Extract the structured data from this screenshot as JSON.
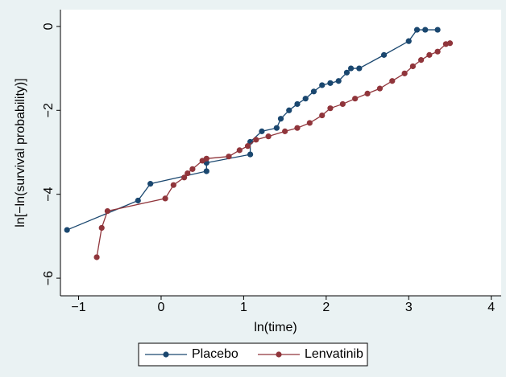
{
  "chart_data": {
    "type": "line",
    "xlabel": "ln(time)",
    "ylabel": "ln[−ln(survival probability)]",
    "xlim": [
      -1.22,
      4.12
    ],
    "ylim": [
      -6.42,
      0.4
    ],
    "xticks": [
      {
        "value": -1,
        "label": "−1"
      },
      0,
      1,
      2,
      3,
      4
    ],
    "yticks": [
      {
        "value": -6,
        "label": "−6"
      },
      {
        "value": -4,
        "label": "−4"
      },
      {
        "value": -2,
        "label": "−2"
      },
      0
    ],
    "grid": false,
    "legend": "bottom",
    "series": [
      {
        "name": "Placebo",
        "color": "#1a476f",
        "x": [
          -1.14,
          -0.28,
          -0.13,
          0.55,
          0.55,
          1.08,
          1.08,
          1.22,
          1.4,
          1.45,
          1.55,
          1.65,
          1.75,
          1.85,
          1.95,
          2.05,
          2.15,
          2.25,
          2.3,
          2.4,
          2.7,
          3.0,
          3.1,
          3.2,
          3.35
        ],
        "values": [
          -4.85,
          -4.15,
          -3.75,
          -3.45,
          -3.25,
          -3.05,
          -2.75,
          -2.5,
          -2.42,
          -2.2,
          -2.0,
          -1.85,
          -1.72,
          -1.55,
          -1.4,
          -1.35,
          -1.3,
          -1.1,
          -1.0,
          -1.0,
          -0.68,
          -0.35,
          -0.08,
          -0.08,
          -0.08
        ]
      },
      {
        "name": "Lenvatinib",
        "color": "#90353b",
        "x": [
          -0.78,
          -0.72,
          -0.65,
          0.05,
          0.15,
          0.28,
          0.32,
          0.38,
          0.5,
          0.55,
          0.82,
          0.95,
          1.05,
          1.15,
          1.3,
          1.5,
          1.65,
          1.8,
          1.95,
          2.05,
          2.2,
          2.35,
          2.5,
          2.65,
          2.8,
          2.95,
          3.05,
          3.15,
          3.25,
          3.35,
          3.45,
          3.5
        ],
        "values": [
          -5.5,
          -4.8,
          -4.4,
          -4.1,
          -3.78,
          -3.6,
          -3.5,
          -3.4,
          -3.2,
          -3.15,
          -3.1,
          -2.95,
          -2.85,
          -2.7,
          -2.62,
          -2.5,
          -2.42,
          -2.3,
          -2.12,
          -1.95,
          -1.85,
          -1.72,
          -1.6,
          -1.48,
          -1.3,
          -1.12,
          -0.95,
          -0.8,
          -0.68,
          -0.6,
          -0.42,
          -0.4
        ]
      }
    ]
  }
}
